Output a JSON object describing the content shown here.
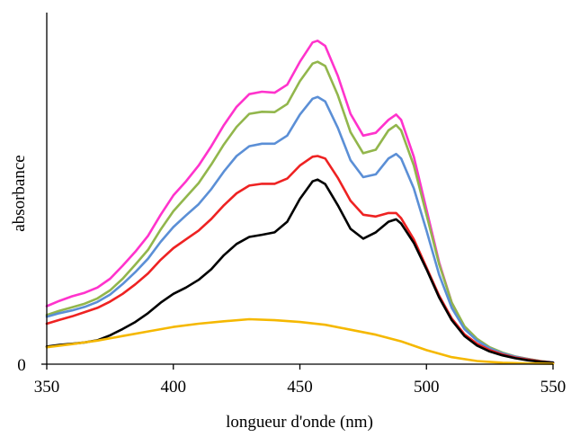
{
  "chart_data": {
    "type": "line",
    "title": "",
    "xlabel": "longueur d'onde (nm)",
    "ylabel": "absorbance",
    "xlim": [
      350,
      550
    ],
    "ylim": [
      0,
      1.0
    ],
    "x_ticks": [
      "350",
      "400",
      "450",
      "500",
      "550"
    ],
    "y_ticks": [
      "0"
    ],
    "grid": false,
    "legend": "none",
    "series": [
      {
        "color": "#ff33cc",
        "x": [
          350,
          355,
          360,
          365,
          370,
          375,
          380,
          385,
          390,
          395,
          400,
          405,
          410,
          415,
          420,
          425,
          430,
          435,
          440,
          445,
          450,
          455,
          457,
          460,
          465,
          470,
          475,
          480,
          485,
          488,
          490,
          495,
          500,
          505,
          510,
          515,
          520,
          525,
          530,
          535,
          540,
          545,
          550
        ],
        "y": [
          0.165,
          0.18,
          0.193,
          0.203,
          0.218,
          0.243,
          0.28,
          0.32,
          0.365,
          0.425,
          0.48,
          0.52,
          0.565,
          0.62,
          0.68,
          0.732,
          0.768,
          0.775,
          0.772,
          0.795,
          0.86,
          0.915,
          0.92,
          0.905,
          0.82,
          0.712,
          0.65,
          0.658,
          0.695,
          0.71,
          0.695,
          0.59,
          0.44,
          0.29,
          0.175,
          0.105,
          0.07,
          0.047,
          0.032,
          0.022,
          0.015,
          0.009,
          0.005
        ]
      },
      {
        "color": "#92b64c",
        "x": [
          350,
          355,
          360,
          365,
          370,
          375,
          380,
          385,
          390,
          395,
          400,
          405,
          410,
          415,
          420,
          425,
          430,
          435,
          440,
          445,
          450,
          455,
          457,
          460,
          465,
          470,
          475,
          480,
          485,
          488,
          490,
          495,
          500,
          505,
          510,
          515,
          520,
          525,
          530,
          535,
          540,
          545,
          550
        ],
        "y": [
          0.14,
          0.152,
          0.162,
          0.172,
          0.187,
          0.21,
          0.243,
          0.283,
          0.325,
          0.383,
          0.435,
          0.475,
          0.515,
          0.568,
          0.625,
          0.675,
          0.712,
          0.718,
          0.717,
          0.74,
          0.805,
          0.855,
          0.86,
          0.848,
          0.765,
          0.66,
          0.6,
          0.61,
          0.665,
          0.68,
          0.665,
          0.565,
          0.425,
          0.285,
          0.175,
          0.108,
          0.072,
          0.048,
          0.033,
          0.022,
          0.015,
          0.009,
          0.005
        ]
      },
      {
        "color": "#5b8fd6",
        "x": [
          350,
          355,
          360,
          365,
          370,
          375,
          380,
          385,
          390,
          395,
          400,
          405,
          410,
          415,
          420,
          425,
          430,
          435,
          440,
          445,
          450,
          455,
          457,
          460,
          465,
          470,
          475,
          480,
          485,
          488,
          490,
          495,
          500,
          505,
          510,
          515,
          520,
          525,
          530,
          535,
          540,
          545,
          550
        ],
        "y": [
          0.135,
          0.145,
          0.153,
          0.163,
          0.177,
          0.198,
          0.228,
          0.262,
          0.3,
          0.348,
          0.39,
          0.423,
          0.455,
          0.498,
          0.548,
          0.592,
          0.62,
          0.627,
          0.627,
          0.65,
          0.71,
          0.755,
          0.76,
          0.747,
          0.672,
          0.58,
          0.532,
          0.54,
          0.585,
          0.598,
          0.585,
          0.5,
          0.38,
          0.255,
          0.16,
          0.1,
          0.067,
          0.045,
          0.031,
          0.021,
          0.014,
          0.008,
          0.005
        ]
      },
      {
        "color": "#ee2222",
        "x": [
          350,
          355,
          360,
          365,
          370,
          375,
          380,
          385,
          390,
          395,
          400,
          405,
          410,
          415,
          420,
          425,
          430,
          435,
          440,
          445,
          450,
          455,
          457,
          460,
          465,
          470,
          475,
          480,
          485,
          488,
          490,
          495,
          500,
          505,
          510,
          515,
          520,
          525,
          530,
          535,
          540,
          545,
          550
        ],
        "y": [
          0.115,
          0.126,
          0.136,
          0.148,
          0.16,
          0.178,
          0.2,
          0.227,
          0.258,
          0.297,
          0.33,
          0.355,
          0.38,
          0.413,
          0.452,
          0.486,
          0.508,
          0.513,
          0.513,
          0.528,
          0.565,
          0.59,
          0.592,
          0.585,
          0.53,
          0.465,
          0.425,
          0.42,
          0.43,
          0.43,
          0.415,
          0.355,
          0.275,
          0.195,
          0.13,
          0.085,
          0.058,
          0.04,
          0.028,
          0.019,
          0.013,
          0.008,
          0.004
        ]
      },
      {
        "color": "#000000",
        "x": [
          350,
          355,
          360,
          365,
          370,
          375,
          380,
          385,
          390,
          395,
          400,
          405,
          410,
          415,
          420,
          425,
          430,
          435,
          440,
          445,
          450,
          455,
          457,
          460,
          465,
          470,
          475,
          480,
          485,
          488,
          490,
          495,
          500,
          505,
          510,
          515,
          520,
          525,
          530,
          535,
          540,
          545,
          550
        ],
        "y": [
          0.05,
          0.055,
          0.058,
          0.062,
          0.068,
          0.082,
          0.1,
          0.12,
          0.145,
          0.175,
          0.2,
          0.218,
          0.24,
          0.27,
          0.31,
          0.342,
          0.362,
          0.368,
          0.375,
          0.405,
          0.47,
          0.52,
          0.525,
          0.512,
          0.452,
          0.385,
          0.357,
          0.375,
          0.405,
          0.412,
          0.4,
          0.345,
          0.27,
          0.19,
          0.125,
          0.08,
          0.053,
          0.036,
          0.025,
          0.017,
          0.011,
          0.007,
          0.004
        ]
      },
      {
        "color": "#f5b800",
        "x": [
          350,
          360,
          370,
          380,
          390,
          400,
          410,
          420,
          430,
          440,
          450,
          460,
          470,
          480,
          490,
          500,
          510,
          520,
          530,
          540,
          550
        ],
        "y": [
          0.048,
          0.057,
          0.067,
          0.08,
          0.093,
          0.106,
          0.115,
          0.122,
          0.128,
          0.125,
          0.12,
          0.112,
          0.098,
          0.084,
          0.065,
          0.04,
          0.02,
          0.009,
          0.004,
          0.002,
          0.001
        ]
      }
    ]
  }
}
